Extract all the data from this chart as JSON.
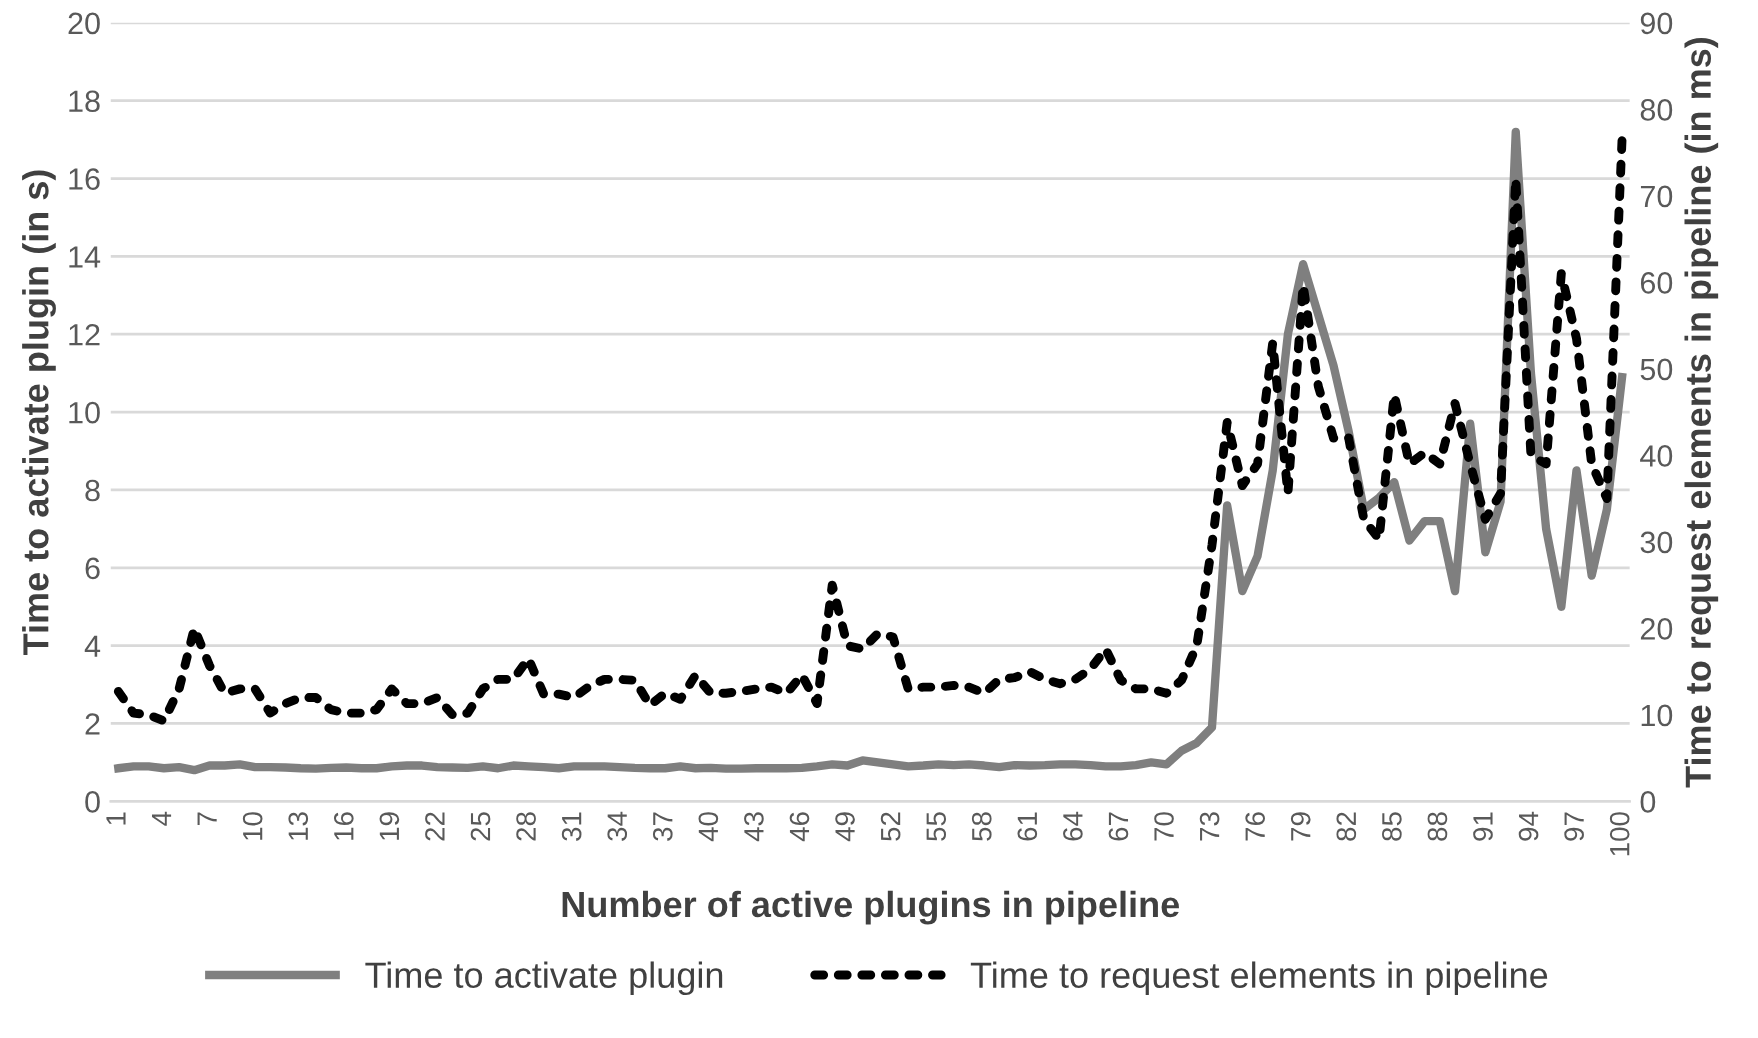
{
  "chart_data": {
    "type": "line",
    "xlabel": "Number of active plugins in pipeline",
    "ylabel": "Time to activate plugin (in s)",
    "y2label": "Time to request elements in pipeline (in ms)",
    "categories": [
      "1",
      null,
      null,
      "4",
      null,
      null,
      "7",
      null,
      null,
      "10",
      null,
      null,
      "13",
      null,
      null,
      "16",
      null,
      null,
      "19",
      null,
      null,
      "22",
      null,
      null,
      "25",
      null,
      null,
      "28",
      null,
      null,
      "31",
      null,
      null,
      "34",
      null,
      null,
      "37",
      null,
      null,
      "40",
      null,
      null,
      "43",
      null,
      null,
      "46",
      null,
      null,
      "49",
      null,
      null,
      "52",
      null,
      null,
      "55",
      null,
      null,
      "58",
      null,
      null,
      "61",
      null,
      null,
      "64",
      null,
      null,
      "67",
      null,
      null,
      "70",
      null,
      null,
      "73",
      null,
      null,
      "76",
      null,
      null,
      "79",
      null,
      null,
      "82",
      null,
      null,
      "85",
      null,
      null,
      "88",
      null,
      null,
      "91",
      null,
      null,
      "94",
      null,
      null,
      "97",
      null,
      null,
      "100"
    ],
    "series": [
      {
        "name": "Time to activate plugin",
        "color": "#7f7f7f",
        "line_style": "solid",
        "values": [
          0.85,
          0.9,
          0.9,
          0.85,
          0.88,
          0.8,
          0.92,
          0.92,
          0.95,
          0.88,
          0.88,
          0.87,
          0.85,
          0.84,
          0.86,
          0.87,
          0.85,
          0.85,
          0.9,
          0.92,
          0.92,
          0.88,
          0.87,
          0.86,
          0.9,
          0.85,
          0.92,
          0.9,
          0.88,
          0.85,
          0.9,
          0.9,
          0.9,
          0.88,
          0.86,
          0.85,
          0.85,
          0.9,
          0.85,
          0.86,
          0.84,
          0.84,
          0.85,
          0.85,
          0.85,
          0.86,
          0.9,
          0.95,
          0.92,
          1.05,
          1.0,
          0.95,
          0.9,
          0.92,
          0.95,
          0.93,
          0.95,
          0.92,
          0.88,
          0.93,
          0.92,
          0.93,
          0.95,
          0.95,
          0.93,
          0.9,
          0.9,
          0.93,
          1.0,
          0.95,
          1.3,
          1.5,
          1.9,
          7.6,
          5.4,
          6.3,
          8.5,
          12.0,
          13.8,
          12.5,
          11.2,
          9.5,
          7.5,
          7.8,
          8.2,
          6.7,
          7.2,
          7.2,
          5.4,
          9.7,
          6.4,
          7.7,
          17.2,
          11.0,
          7.0,
          5.0,
          8.5,
          5.8,
          7.5,
          10.9
        ]
      },
      {
        "name": "Time to request elements in pipeline",
        "color": "#000000",
        "line_style": "dotted",
        "axis": "y2",
        "values": [
          12.7,
          10.2,
          10.0,
          9.3,
          13.0,
          20.0,
          15.7,
          12.5,
          13.0,
          13.0,
          10.2,
          11.3,
          12.0,
          12.0,
          10.6,
          10.2,
          10.2,
          10.6,
          13.0,
          11.3,
          11.3,
          12.0,
          10.0,
          10.2,
          13.0,
          14.1,
          14.1,
          16.5,
          12.4,
          12.4,
          12.0,
          13.3,
          14.1,
          14.1,
          14.0,
          11.1,
          12.5,
          11.8,
          14.6,
          12.5,
          12.5,
          12.7,
          13.0,
          13.2,
          12.5,
          14.6,
          11.3,
          25.0,
          18.0,
          17.6,
          19.4,
          19.0,
          13.0,
          13.2,
          13.2,
          13.4,
          13.2,
          12.5,
          14.1,
          14.3,
          15.0,
          14.1,
          13.6,
          14.1,
          15.3,
          17.6,
          14.0,
          13.0,
          13.0,
          12.5,
          14.0,
          18.0,
          29.6,
          43.8,
          36.5,
          39.0,
          53.0,
          35.6,
          59.7,
          48.0,
          42.0,
          42.0,
          32.6,
          30.3,
          47.0,
          39.0,
          40.3,
          39.0,
          46.0,
          39.0,
          32.6,
          35.6,
          72.0,
          40.0,
          39.0,
          61.0,
          53.5,
          39.0,
          35.0,
          76.6
        ]
      }
    ],
    "ylim": [
      0,
      20
    ],
    "yticks": [
      0,
      2,
      4,
      6,
      8,
      10,
      12,
      14,
      16,
      18,
      20
    ],
    "y2lim": [
      0,
      90
    ],
    "y2ticks": [
      0,
      10,
      20,
      30,
      40,
      50,
      60,
      70,
      80,
      90
    ],
    "grid": "y",
    "legend": "bottom"
  }
}
